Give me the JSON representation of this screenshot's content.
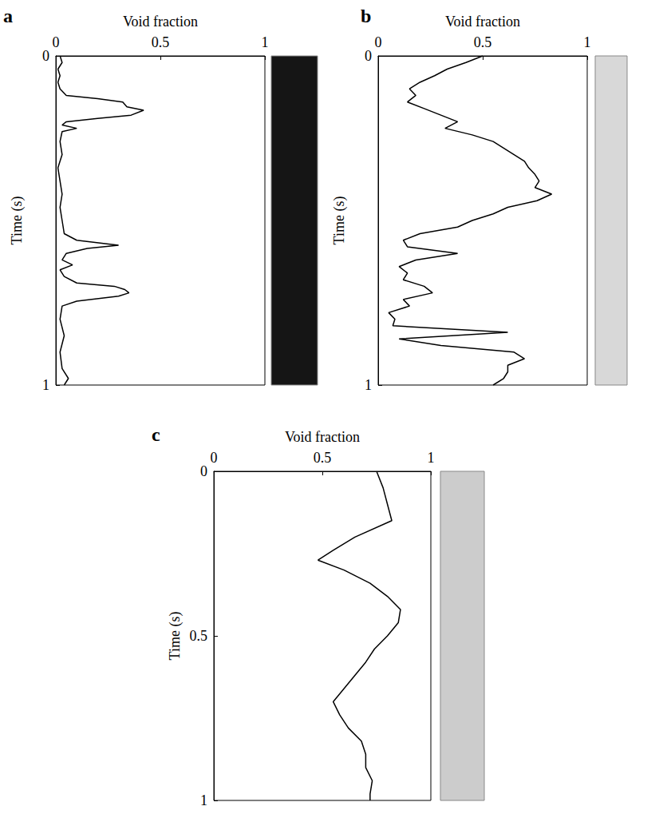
{
  "chart_data": [
    {
      "panel": "a",
      "type": "line",
      "color": "#000000",
      "xlabel": "Void fraction",
      "ylabel": "Time (s)",
      "xlim": [
        0,
        1
      ],
      "xticks": [
        0,
        0.5,
        1
      ],
      "ylim": [
        0,
        1
      ],
      "yticks": [
        0,
        1
      ],
      "time": [
        0,
        0.02,
        0.04,
        0.06,
        0.08,
        0.1,
        0.12,
        0.13,
        0.14,
        0.155,
        0.165,
        0.18,
        0.19,
        0.2,
        0.21,
        0.22,
        0.23,
        0.26,
        0.3,
        0.34,
        0.38,
        0.42,
        0.46,
        0.5,
        0.54,
        0.56,
        0.575,
        0.585,
        0.6,
        0.62,
        0.635,
        0.65,
        0.67,
        0.69,
        0.7,
        0.71,
        0.72,
        0.73,
        0.745,
        0.76,
        0.8,
        0.85,
        0.9,
        0.95,
        0.98,
        1
      ],
      "values": [
        0.02,
        0.03,
        0.01,
        0.02,
        0.01,
        0.02,
        0.05,
        0.2,
        0.32,
        0.34,
        0.42,
        0.36,
        0.2,
        0.05,
        0.03,
        0.1,
        0.03,
        0.02,
        0.03,
        0.01,
        0.02,
        0.03,
        0.02,
        0.03,
        0.04,
        0.1,
        0.3,
        0.15,
        0.05,
        0.03,
        0.08,
        0.02,
        0.04,
        0.1,
        0.28,
        0.33,
        0.35,
        0.3,
        0.1,
        0.03,
        0.02,
        0.04,
        0.02,
        0.03,
        0.06,
        0.04
      ]
    },
    {
      "panel": "b",
      "type": "line",
      "color": "#000000",
      "xlabel": "Void fraction",
      "ylabel": "Time (s)",
      "xlim": [
        0,
        1
      ],
      "xticks": [
        0,
        0.5,
        1
      ],
      "ylim": [
        0,
        1
      ],
      "yticks": [
        0,
        1
      ],
      "time": [
        0,
        0.02,
        0.04,
        0.06,
        0.08,
        0.1,
        0.12,
        0.14,
        0.16,
        0.18,
        0.2,
        0.22,
        0.24,
        0.26,
        0.28,
        0.3,
        0.32,
        0.34,
        0.36,
        0.38,
        0.4,
        0.42,
        0.44,
        0.46,
        0.48,
        0.5,
        0.52,
        0.54,
        0.56,
        0.58,
        0.6,
        0.62,
        0.64,
        0.66,
        0.68,
        0.7,
        0.72,
        0.74,
        0.76,
        0.78,
        0.8,
        0.82,
        0.84,
        0.86,
        0.88,
        0.9,
        0.92,
        0.94,
        0.96,
        0.98,
        1
      ],
      "values": [
        0.5,
        0.42,
        0.33,
        0.27,
        0.2,
        0.15,
        0.18,
        0.14,
        0.22,
        0.3,
        0.38,
        0.32,
        0.45,
        0.55,
        0.6,
        0.65,
        0.7,
        0.72,
        0.75,
        0.77,
        0.75,
        0.83,
        0.76,
        0.62,
        0.55,
        0.45,
        0.38,
        0.2,
        0.12,
        0.14,
        0.38,
        0.18,
        0.1,
        0.14,
        0.12,
        0.22,
        0.26,
        0.12,
        0.15,
        0.05,
        0.08,
        0.07,
        0.62,
        0.1,
        0.3,
        0.65,
        0.7,
        0.62,
        0.62,
        0.6,
        0.55
      ]
    },
    {
      "panel": "c",
      "type": "line",
      "color": "#000000",
      "xlabel": "Void fraction",
      "ylabel": "Time (s)",
      "xlim": [
        0,
        1
      ],
      "xticks": [
        0,
        0.5,
        1
      ],
      "ylim": [
        0,
        1
      ],
      "yticks": [
        0,
        0.5,
        1
      ],
      "time": [
        0,
        0.05,
        0.1,
        0.15,
        0.2,
        0.24,
        0.27,
        0.3,
        0.34,
        0.38,
        0.42,
        0.46,
        0.5,
        0.54,
        0.58,
        0.62,
        0.66,
        0.7,
        0.74,
        0.78,
        0.82,
        0.86,
        0.9,
        0.94,
        0.98,
        1
      ],
      "values": [
        0.75,
        0.78,
        0.8,
        0.82,
        0.65,
        0.55,
        0.48,
        0.6,
        0.72,
        0.8,
        0.86,
        0.85,
        0.8,
        0.74,
        0.7,
        0.65,
        0.6,
        0.55,
        0.58,
        0.62,
        0.68,
        0.7,
        0.7,
        0.73,
        0.72,
        0.72
      ]
    }
  ]
}
